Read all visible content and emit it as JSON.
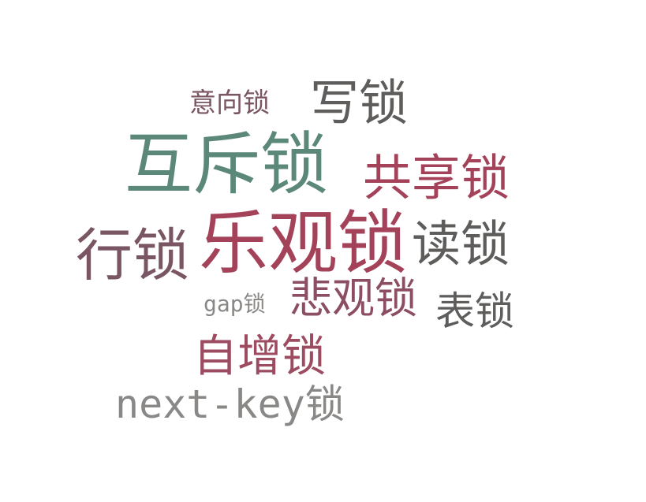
{
  "word_cloud": {
    "words": [
      {
        "id": "intention-lock",
        "text": "意向锁",
        "color": "#7a5563"
      },
      {
        "id": "write-lock",
        "text": "写锁",
        "color": "#5e5d5c"
      },
      {
        "id": "mutex-lock",
        "text": "互斥锁",
        "color": "#5b8878"
      },
      {
        "id": "shared-lock",
        "text": "共享锁",
        "color": "#a4425a"
      },
      {
        "id": "row-lock",
        "text": "行锁",
        "color": "#7a5563"
      },
      {
        "id": "optimistic-lock",
        "text": "乐观锁",
        "color": "#a4425a"
      },
      {
        "id": "read-lock",
        "text": "读锁",
        "color": "#5e5d5c"
      },
      {
        "id": "gap-lock-prefix",
        "text": "gap",
        "color": "#8a8886"
      },
      {
        "id": "gap-lock-suffix",
        "text": "锁",
        "color": "#8a8886"
      },
      {
        "id": "pessimistic-lock",
        "text": "悲观锁",
        "color": "#8b4e63"
      },
      {
        "id": "table-lock",
        "text": "表锁",
        "color": "#5e5d5c"
      },
      {
        "id": "auto-inc-lock",
        "text": "自增锁",
        "color": "#9c4b60"
      },
      {
        "id": "next-key-prefix",
        "text": "next-key",
        "color": "#8a8886"
      },
      {
        "id": "next-key-suffix",
        "text": "锁",
        "color": "#8a8886"
      }
    ]
  }
}
